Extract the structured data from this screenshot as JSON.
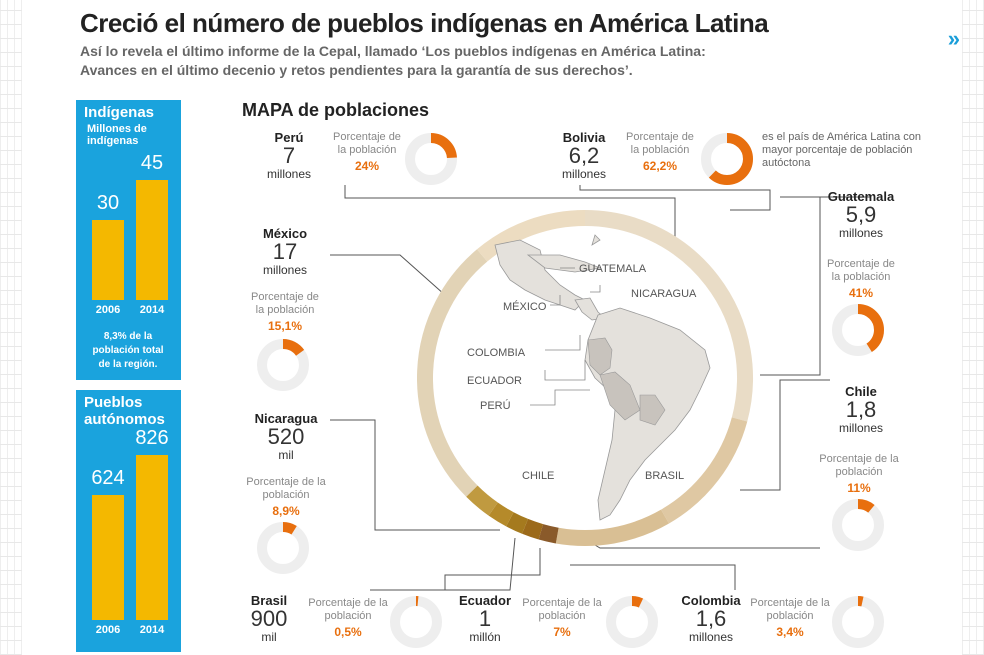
{
  "header": {
    "title": "Creció el número de pueblos indígenas en América Latina",
    "subtitle_line1": "Así lo revela el último informe de la Cepal, llamado ‘Los pueblos indígenas en América Latina:",
    "subtitle_line2": "Avances en el último decenio y retos pendientes para la garantía de sus derechos’.",
    "next_icon": "double-chevron-right-icon",
    "next_label": "»"
  },
  "indigenas_panel": {
    "heading": "Indígenas",
    "subheading_line1": "Millones de",
    "subheading_line2": "indígenas",
    "note_line1": "8,3% de la",
    "note_line2": "población total",
    "note_line3": "de la región.",
    "chart_data": {
      "type": "bar",
      "categories": [
        "2006",
        "2014"
      ],
      "values": [
        30,
        45
      ],
      "labels": [
        "30",
        "45"
      ],
      "color": "#f4b800"
    }
  },
  "pueblos_panel": {
    "heading_line1": "Pueblos",
    "heading_line2": "autónomos",
    "chart_data": {
      "type": "bar",
      "categories": [
        "2006",
        "2014"
      ],
      "values": [
        624,
        826
      ],
      "labels": [
        "624",
        "826"
      ],
      "color": "#f4b800"
    }
  },
  "map": {
    "title": "MAPA de poblaciones",
    "labels": {
      "guatemala": "GUATEMALA",
      "nicaragua": "NICARAGUA",
      "mexico": "MÉXICO",
      "colombia": "COLOMBIA",
      "ecuador": "ECUADOR",
      "peru": "PERÚ",
      "chile": "CHILE",
      "brasil": "BRASIL"
    },
    "bolivia_note": "es el país de América Latina con mayor porcentaje de población autóctona"
  },
  "pct_label": "Porcentaje de la población",
  "countries": {
    "peru": {
      "name": "Perú",
      "value": "7",
      "unit": "millones",
      "pct_text": "24%",
      "pct": 24
    },
    "bolivia": {
      "name": "Bolivia",
      "value": "6,2",
      "unit": "millones",
      "pct_text": "62,2%",
      "pct": 62.2
    },
    "guatemala": {
      "name": "Guatemala",
      "value": "5,9",
      "unit": "millones",
      "pct_text": "41%",
      "pct": 41
    },
    "mexico": {
      "name": "México",
      "value": "17",
      "unit": "millones",
      "pct_text": "15,1%",
      "pct": 15.1
    },
    "chile": {
      "name": "Chile",
      "value": "1,8",
      "unit": "millones",
      "pct_text": "11%",
      "pct": 11
    },
    "nicaragua": {
      "name": "Nicaragua",
      "value": "520",
      "unit": "mil",
      "pct_text": "8,9%",
      "pct": 8.9
    },
    "brasil": {
      "name": "Brasil",
      "value": "900",
      "unit": "mil",
      "pct_text": "0,5%",
      "pct": 0.5
    },
    "ecuador": {
      "name": "Ecuador",
      "value": "1",
      "unit": "millón",
      "pct_text": "7%",
      "pct": 7
    },
    "colombia": {
      "name": "Colombia",
      "value": "1,6",
      "unit": "millones",
      "pct_text": "3,4%",
      "pct": 3.4
    }
  },
  "colors": {
    "accent_blue": "#1aa3dd",
    "bar_yellow": "#f4b800",
    "donut_orange": "#e86f0e",
    "donut_track": "#eeeeee"
  }
}
